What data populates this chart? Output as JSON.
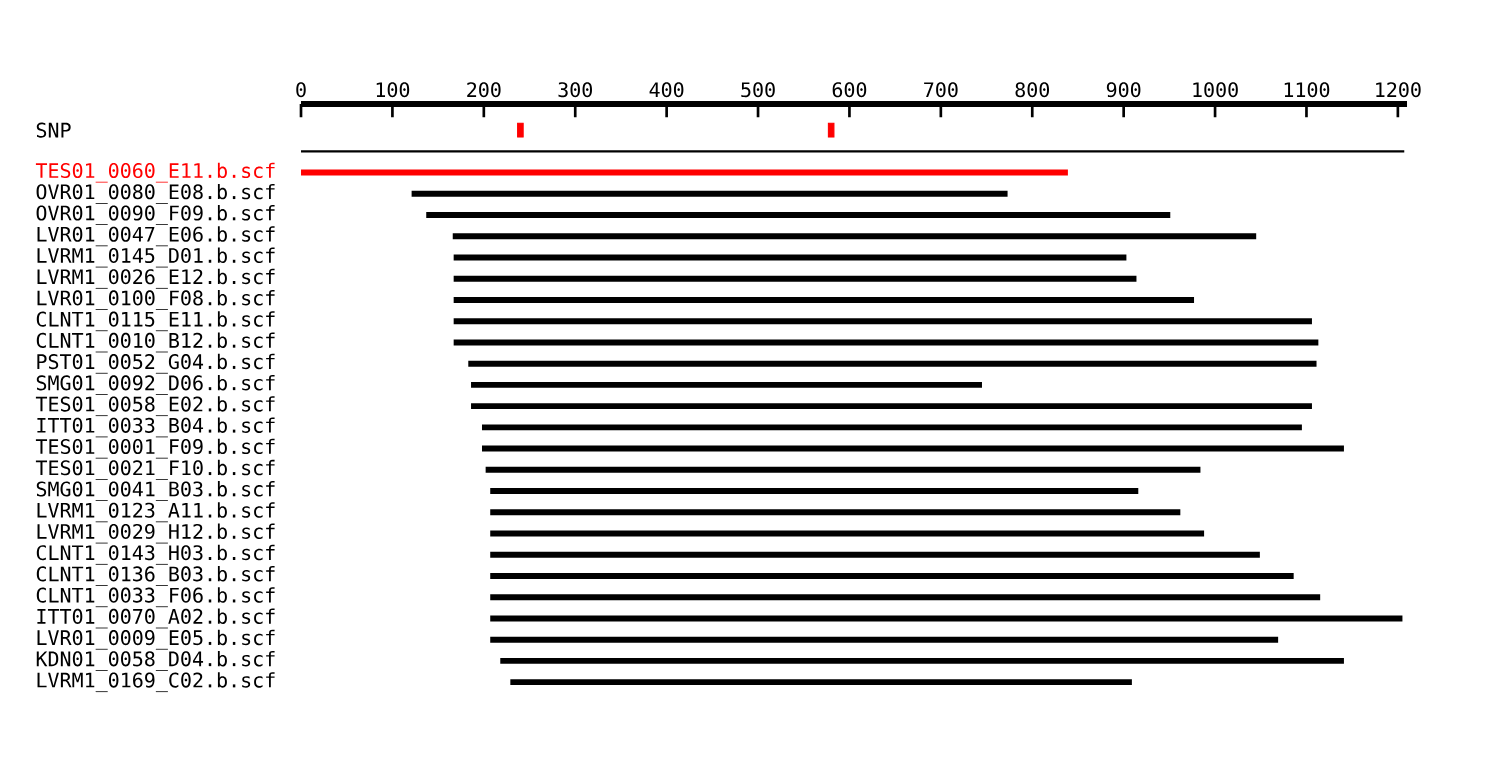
{
  "chart_data": {
    "type": "bar",
    "orientation": "horizontal",
    "categories": [
      "SNP",
      null,
      "TES01_0060_E11.b.scf",
      "OVR01_0080_E08.b.scf",
      "OVR01_0090_F09.b.scf",
      "LVR01_0047_E06.b.scf",
      "LVRM1_0145_D01.b.scf",
      "LVRM1_0026_E12.b.scf",
      "LVR01_0100_F08.b.scf",
      "CLNT1_0115_E11.b.scf",
      "CLNT1_0010_B12.b.scf",
      "PST01_0052_G04.b.scf",
      "SMG01_0092_D06.b.scf",
      "TES01_0058_E02.b.scf",
      "ITT01_0033_B04.b.scf",
      "TES01_0001_F09.b.scf",
      "TES01_0021_F10.b.scf",
      "SMG01_0041_B03.b.scf",
      "LVRM1_0123_A11.b.scf",
      "LVRM1_0029_H12.b.scf",
      "CLNT1_0143_H03.b.scf",
      "CLNT1_0136_B03.b.scf",
      "CLNT1_0033_F06.b.scf",
      "ITT01_0070_A02.b.scf",
      "LVR01_0009_E05.b.scf",
      "KDN01_0058_D04.b.scf",
      "LVRM1_0169_C02.b.scf"
    ],
    "xlim": [
      0,
      1210
    ],
    "xticks": [
      0,
      100,
      200,
      300,
      400,
      500,
      600,
      700,
      800,
      900,
      1000,
      1100,
      1200
    ],
    "series": [
      {
        "type": "bar",
        "colors": [
          "#000000",
          "#000000",
          "#ff0000",
          "#000000",
          "#000000",
          "#000000",
          "#000000",
          "#000000",
          "#000000",
          "#000000",
          "#000000",
          "#000000",
          "#000000",
          "#000000",
          "#000000",
          "#000000",
          "#000000",
          "#000000",
          "#000000",
          "#000000",
          "#000000",
          "#000000",
          "#000000",
          "#000000",
          "#000000",
          "#000000",
          "#000000"
        ],
        "base": [
          null,
          0,
          0,
          121,
          137,
          166,
          167,
          167,
          167,
          167,
          167,
          183,
          186,
          186,
          198,
          198,
          202,
          207,
          207,
          207,
          207,
          207,
          207,
          207,
          207,
          218,
          229
        ],
        "values": [
          null,
          1207,
          839,
          652,
          814,
          879,
          736,
          747,
          810,
          939,
          946,
          928,
          559,
          920,
          897,
          943,
          782,
          709,
          755,
          781,
          842,
          879,
          908,
          998,
          862,
          923,
          680
        ]
      },
      {
        "type": "scatter",
        "color": "#ff0000",
        "x": [
          "SNP",
          "SNP"
        ],
        "values": [
          240,
          580
        ]
      }
    ]
  }
}
